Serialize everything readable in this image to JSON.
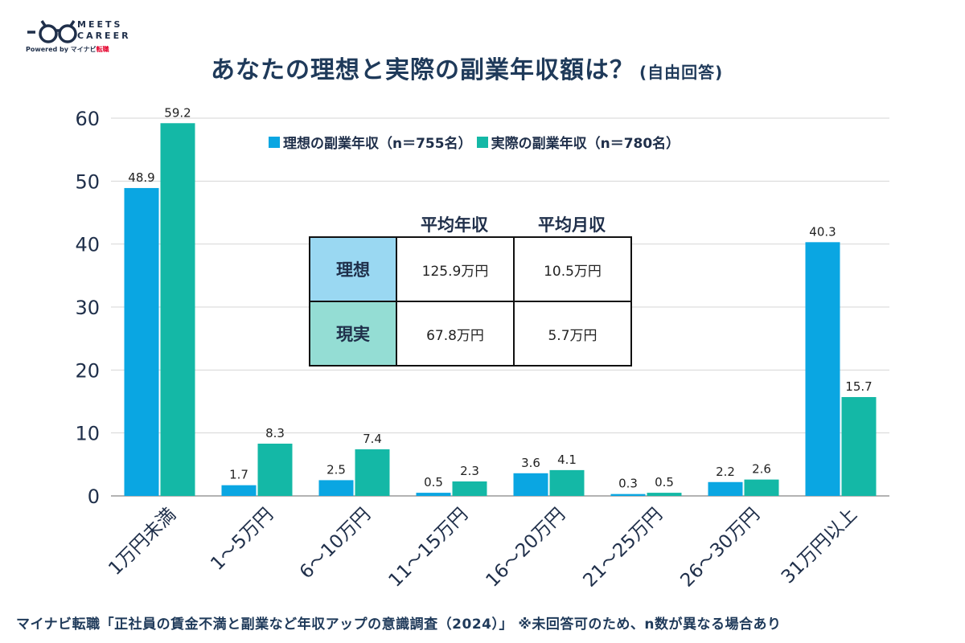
{
  "logo": {
    "line1": "MEETS",
    "line2": "CAREER",
    "powered_by": "Powered by",
    "mynavi": "マイナビ",
    "tenshoku": "転職"
  },
  "title": "あなたの理想と実際の副業年収額は？",
  "title_note": "(自由回答)",
  "footer": "マイナビ転職「正社員の賃金不満と副業など年収アップの意識調査（2024）」 ※未回答可のため、n数が異なる場合あり",
  "colors": {
    "ideal": "#0aa6e2",
    "actual": "#14b8a6",
    "ideal_cell": "#9ad8f2",
    "actual_cell": "#94ddd4",
    "grid": "#d6d6d6"
  },
  "chart_data": {
    "type": "bar",
    "title": "あなたの理想と実際の副業年収額は？",
    "xlabel": "",
    "ylabel": "",
    "ylim": [
      0,
      60
    ],
    "yticks": [
      0,
      10,
      20,
      30,
      40,
      50,
      60
    ],
    "grid": true,
    "legend": "top",
    "categories": [
      "1万円未満",
      "1～5万円",
      "6～10万円",
      "11～15万円",
      "16～20万円",
      "21～25万円",
      "26～30万円",
      "31万円以上"
    ],
    "series": [
      {
        "name": "理想の副業年収（n＝755名）",
        "values": [
          48.9,
          1.7,
          2.5,
          0.5,
          3.6,
          0.3,
          2.2,
          40.3
        ]
      },
      {
        "name": "実際の副業年収（n＝780名）",
        "values": [
          59.2,
          8.3,
          7.4,
          2.3,
          4.1,
          0.5,
          2.6,
          15.7
        ]
      }
    ]
  },
  "summary_table": {
    "headers": [
      "平均年収",
      "平均月収"
    ],
    "rows": [
      {
        "label": "理想",
        "values": [
          "125.9万円",
          "10.5万円"
        ]
      },
      {
        "label": "現実",
        "values": [
          "67.8万円",
          "5.7万円"
        ]
      }
    ]
  }
}
